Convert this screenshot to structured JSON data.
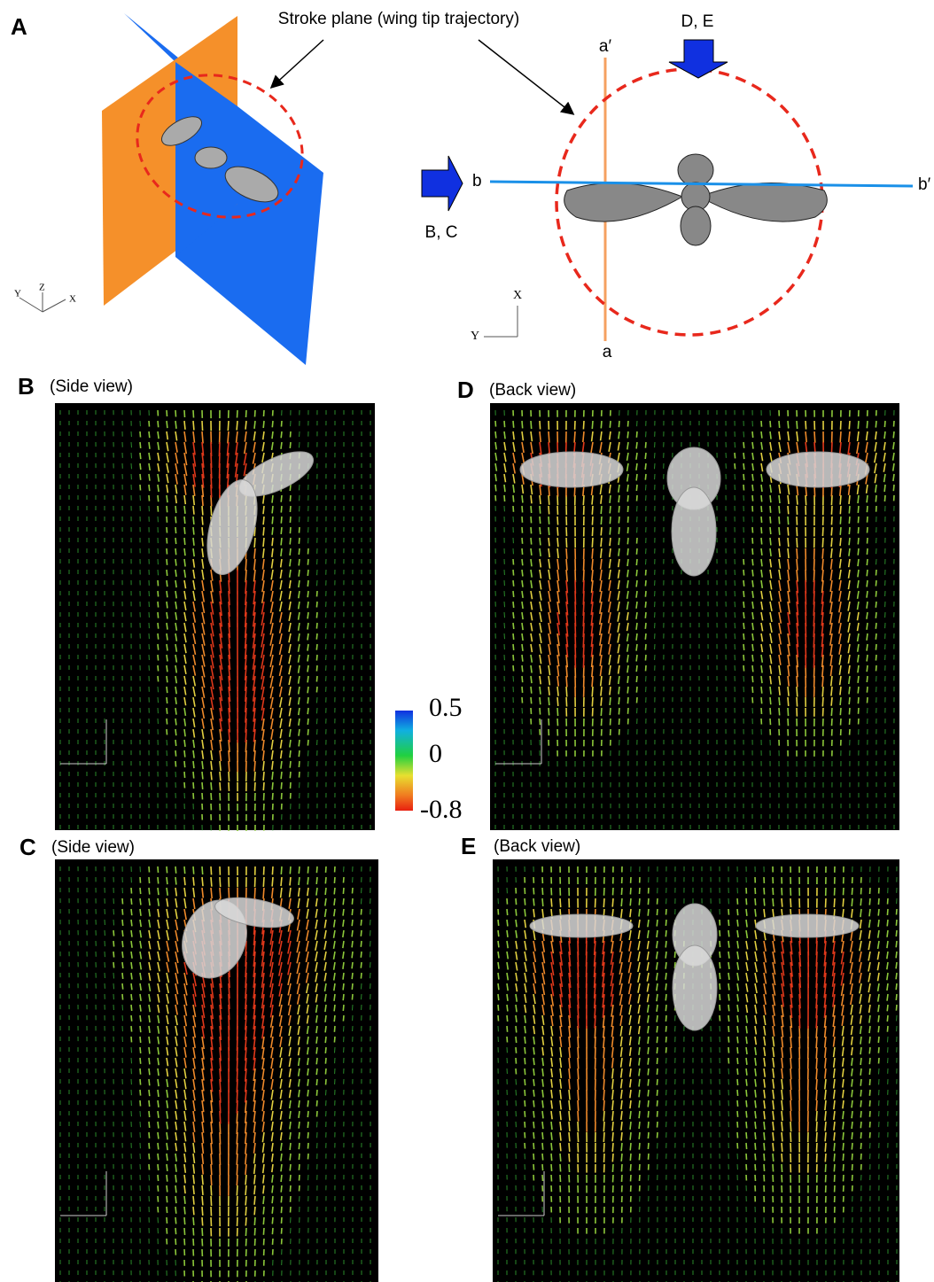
{
  "panel_a": {
    "label": "A",
    "callout": "Stroke plane (wing tip trajectory)",
    "left_axes": [
      "Y",
      "Z",
      "X"
    ],
    "a_prime": "a′",
    "a": "a",
    "b": "b",
    "b_prime": "b′",
    "view_de": "D, E",
    "view_bc": "B, C",
    "right_axes": [
      "X",
      "Y"
    ]
  },
  "panel_b": {
    "label": "B",
    "caption": "(Side view)"
  },
  "panel_c": {
    "label": "C",
    "caption": "(Side view)"
  },
  "panel_d": {
    "label": "D",
    "caption": "(Back view)"
  },
  "panel_e": {
    "label": "E",
    "caption": "(Back view)"
  },
  "colorbar": {
    "labels": [
      "0.5",
      "0",
      "-0.8"
    ]
  }
}
